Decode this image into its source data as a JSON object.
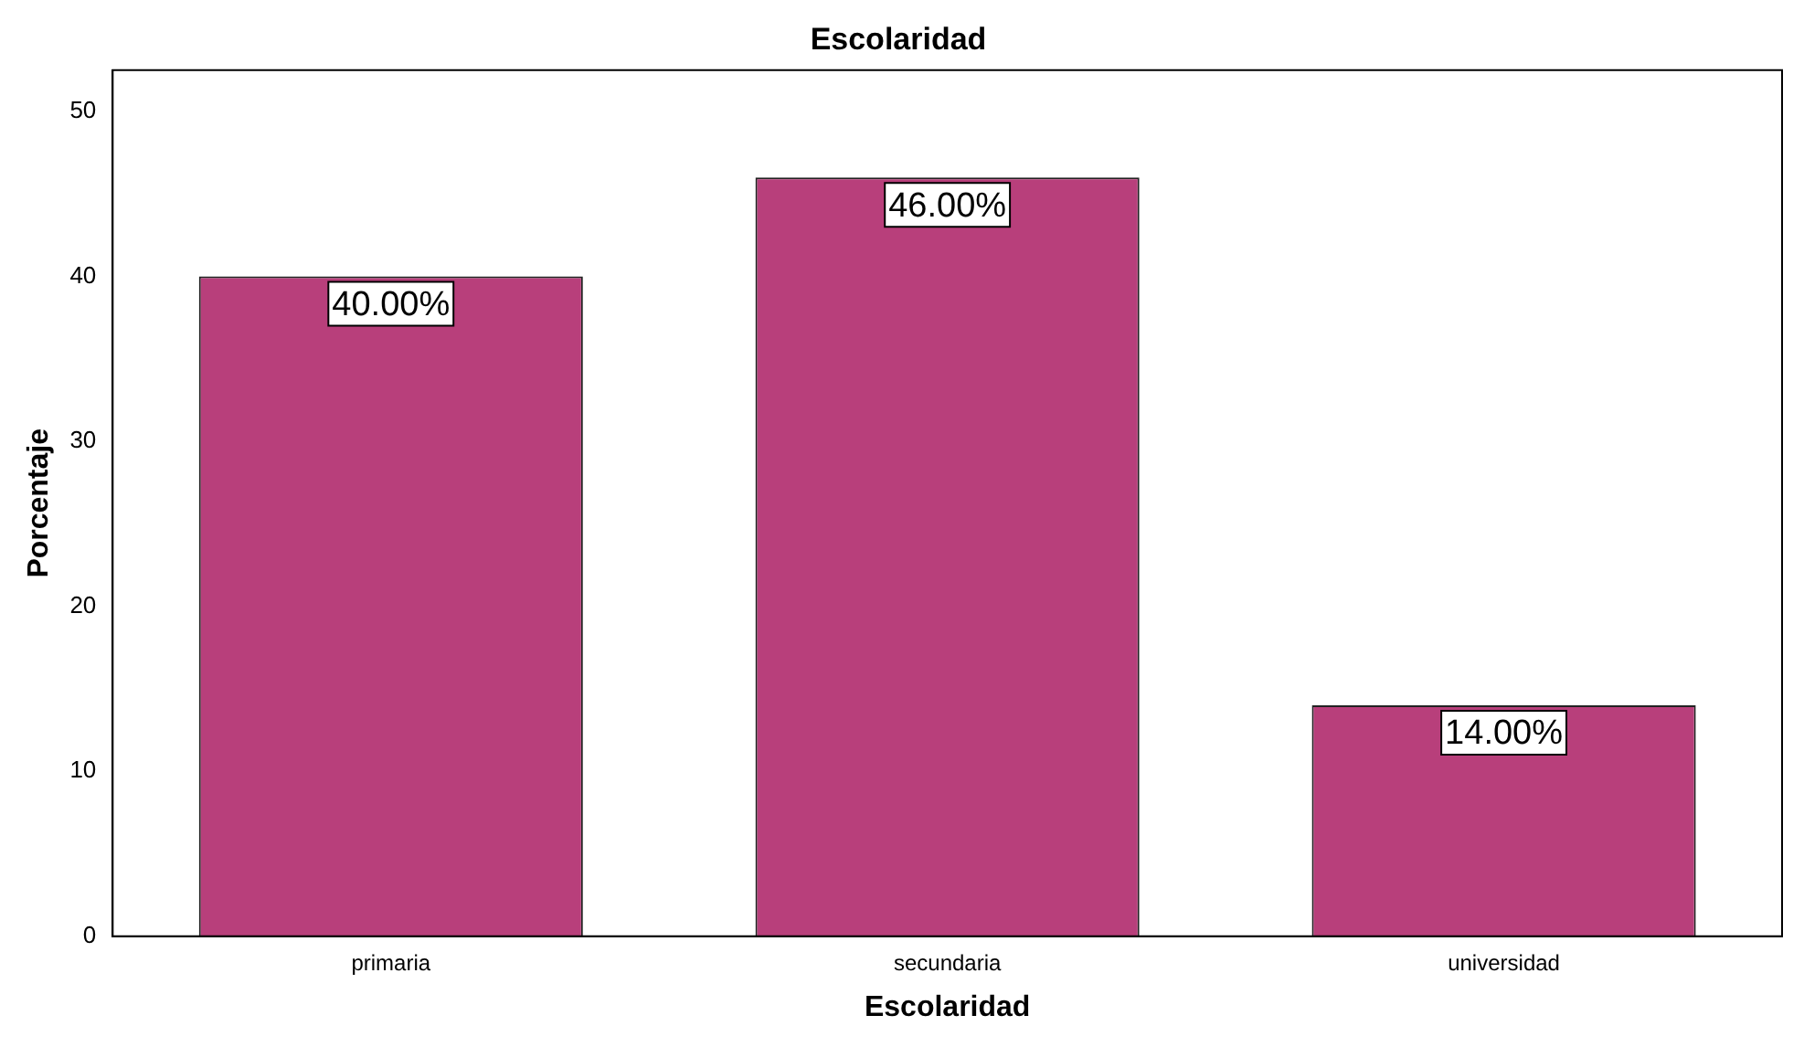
{
  "chart_data": {
    "type": "bar",
    "title": "Escolaridad",
    "xlabel": "Escolaridad",
    "ylabel": "Porcentaje",
    "categories": [
      "primaria",
      "secundaria",
      "universidad"
    ],
    "values": [
      40,
      46,
      14
    ],
    "value_labels": [
      "40.00%",
      "46.00%",
      "14.00%"
    ],
    "color": "#b83f7b",
    "ylim": [
      0,
      52.5
    ],
    "yticks": [
      0,
      10,
      20,
      30,
      40,
      50
    ],
    "grid": false,
    "legend": false
  }
}
